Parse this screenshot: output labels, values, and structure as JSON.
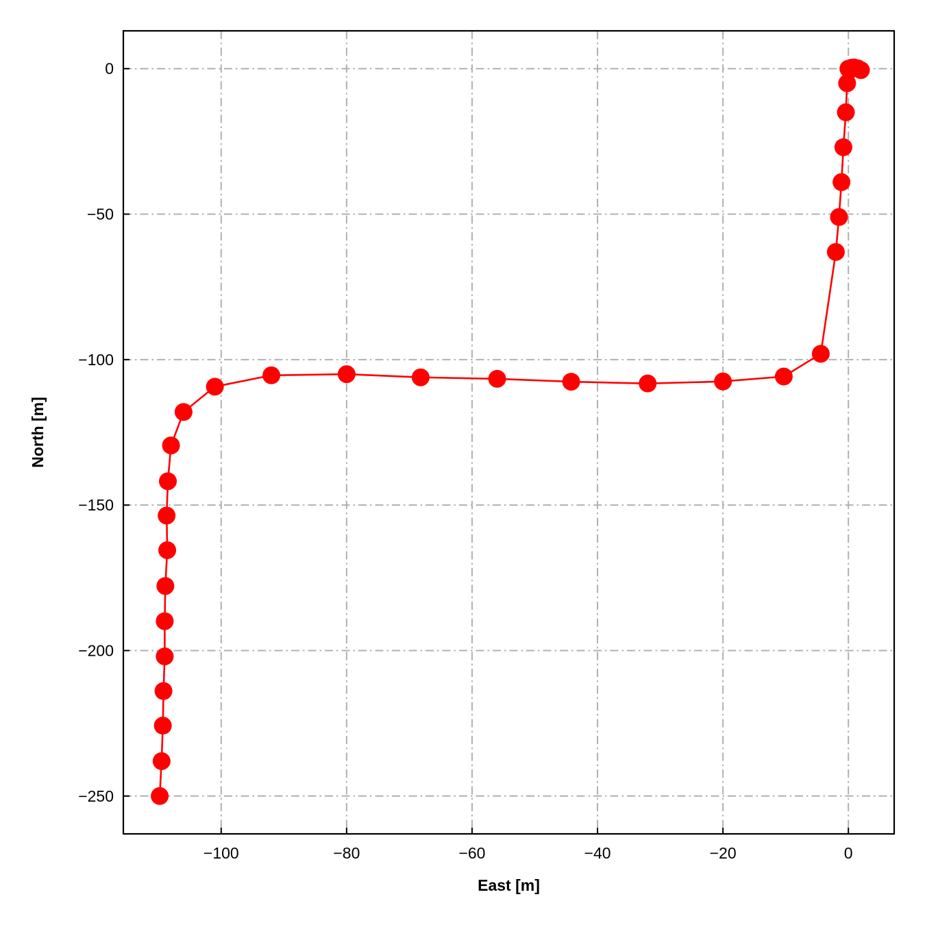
{
  "chart_data": {
    "type": "line",
    "title": "",
    "xlabel": "East [m]",
    "ylabel": "North [m]",
    "xlim": [
      -115.6,
      7.3
    ],
    "ylim": [
      -263,
      13
    ],
    "xticks": [
      -100,
      -80,
      -60,
      -40,
      -20,
      0
    ],
    "yticks": [
      0,
      -50,
      -100,
      -150,
      -200,
      -250
    ],
    "xtick_labels": [
      "−100",
      "−80",
      "−60",
      "−40",
      "−20",
      "0"
    ],
    "ytick_labels": [
      "0",
      "−50",
      "−100",
      "−150",
      "−200",
      "−250"
    ],
    "grid": true,
    "grid_style": "dashdot",
    "series": [
      {
        "color": "#ff0000",
        "marker": "circle",
        "points": [
          [
            0,
            0
          ],
          [
            0.5,
            0.3
          ],
          [
            0.9,
            0.4
          ],
          [
            1.5,
            0.1
          ],
          [
            2.0,
            -0.5
          ],
          [
            -0.2,
            -5
          ],
          [
            -0.4,
            -15
          ],
          [
            -0.8,
            -27
          ],
          [
            -1.1,
            -39
          ],
          [
            -1.5,
            -51
          ],
          [
            -2.0,
            -63
          ],
          [
            -4.4,
            -98
          ],
          [
            -10.3,
            -105.8
          ],
          [
            -20.0,
            -107.5
          ],
          [
            -32.0,
            -108.2
          ],
          [
            -44.2,
            -107.6
          ],
          [
            -56.0,
            -106.6
          ],
          [
            -68.2,
            -106.1
          ],
          [
            -80.0,
            -105.0
          ],
          [
            -92.0,
            -105.4
          ],
          [
            -101.0,
            -109.3
          ],
          [
            -106.0,
            -118.0
          ],
          [
            -108.0,
            -129.5
          ],
          [
            -108.5,
            -141.8
          ],
          [
            -108.7,
            -153.6
          ],
          [
            -108.6,
            -165.5
          ],
          [
            -108.9,
            -177.8
          ],
          [
            -109.0,
            -189.9
          ],
          [
            -109.0,
            -202.0
          ],
          [
            -109.2,
            -213.9
          ],
          [
            -109.3,
            -225.8
          ],
          [
            -109.5,
            -238.0
          ],
          [
            -109.8,
            -250.0
          ]
        ]
      }
    ]
  }
}
